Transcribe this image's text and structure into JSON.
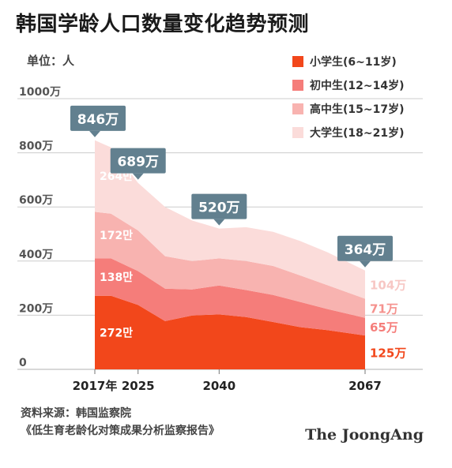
{
  "title": "韩国学龄人口数量变化趋势预测",
  "unit_label": "单位：人",
  "colors": {
    "primary": "#f2471b",
    "middle": "#f57d7a",
    "high": "#f8b3b0",
    "university": "#fbdcda",
    "callout": "#62808f",
    "grid": "#cccccc"
  },
  "source": {
    "line1": "资料来源：韩国监察院",
    "line2": "《低生育老龄化对策成果分析监察报告》"
  },
  "brand": "The JoongAng",
  "chart_data": {
    "type": "area",
    "stacked": true,
    "title": "韩国学龄人口数量变化趋势预测",
    "ylabel": "单位：人",
    "ylim": [
      0,
      10000000
    ],
    "yticks": [
      0,
      2000000,
      4000000,
      6000000,
      8000000,
      10000000
    ],
    "ytick_labels": [
      "0",
      "200万",
      "400万",
      "600万",
      "800万",
      "1000万"
    ],
    "xlim": [
      2017,
      2067
    ],
    "xticks": [
      2017,
      2025,
      2040,
      2067
    ],
    "xtick_labels": [
      "2017年",
      "2025",
      "2040",
      "2067"
    ],
    "x": [
      2017,
      2020,
      2025,
      2030,
      2035,
      2040,
      2045,
      2050,
      2055,
      2060,
      2067
    ],
    "series": [
      {
        "name": "小学生(6~11岁)",
        "color": "#f2471b",
        "values": [
          2720000,
          2720000,
          2380000,
          1780000,
          1990000,
          2030000,
          1930000,
          1750000,
          1560000,
          1450000,
          1250000
        ]
      },
      {
        "name": "初中生(12~14岁)",
        "color": "#f57d7a",
        "values": [
          1380000,
          1380000,
          1250000,
          1200000,
          960000,
          1070000,
          1000000,
          1000000,
          930000,
          780000,
          650000
        ]
      },
      {
        "name": "高中生(15~17岁)",
        "color": "#f8b3b0",
        "values": [
          1720000,
          1650000,
          1500000,
          1200000,
          1050000,
          1000000,
          1070000,
          1070000,
          980000,
          880000,
          710000
        ]
      },
      {
        "name": "大学生(18~21岁)",
        "color": "#fbdcda",
        "values": [
          2640000,
          2450000,
          1760000,
          1820000,
          1500000,
          1100000,
          1250000,
          1260000,
          1270000,
          1220000,
          1040000
        ]
      }
    ],
    "segment_labels_2017": [
      "272만",
      "138만",
      "172만",
      "264만"
    ],
    "end_labels_2067": [
      "125万",
      "65万",
      "71万",
      "104万"
    ],
    "totals": [
      {
        "x": 2017,
        "label": "846万"
      },
      {
        "x": 2025,
        "label": "689万"
      },
      {
        "x": 2040,
        "label": "520万"
      },
      {
        "x": 2067,
        "label": "364万"
      }
    ],
    "grid": true,
    "legend_position": "top-right"
  }
}
